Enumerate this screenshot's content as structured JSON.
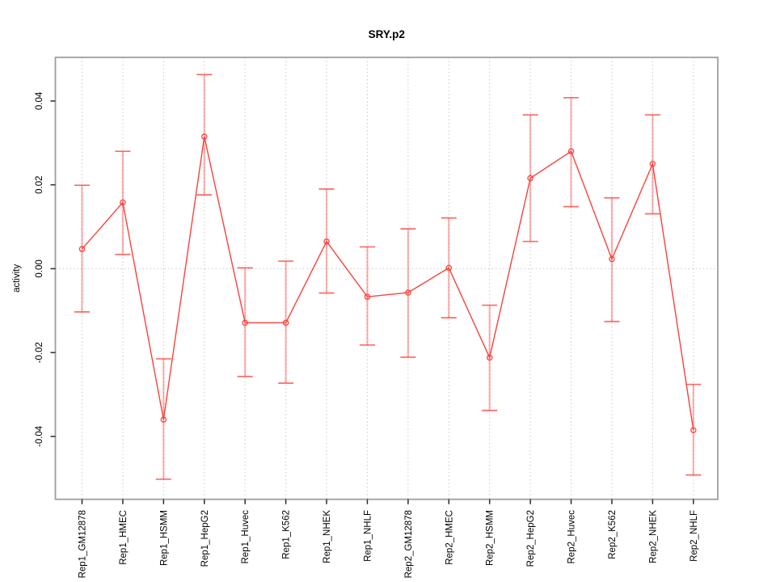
{
  "chart_data": {
    "type": "line",
    "title": "SRY.p2",
    "xlabel": "",
    "ylabel": "activity",
    "legend": "none",
    "grid": "dotted vertical line at each category; dotted horizontal line at y=0",
    "point_style": "open circle with error bars",
    "categories": [
      "Rep1_GM12878",
      "Rep1_HMEC",
      "Rep1_HSMM",
      "Rep1_HepG2",
      "Rep1_Huvec",
      "Rep1_K562",
      "Rep1_NHEK",
      "Rep1_NHLF",
      "Rep2_GM12878",
      "Rep2_HMEC",
      "Rep2_HSMM",
      "Rep2_HepG2",
      "Rep2_Huvec",
      "Rep2_K562",
      "Rep2_NHEK",
      "Rep2_NHLF"
    ],
    "series": [
      {
        "name": "activity",
        "values": [
          0.0047,
          0.0158,
          -0.036,
          0.0315,
          -0.0129,
          -0.0129,
          0.0065,
          -0.0067,
          -0.0057,
          0.0002,
          -0.0212,
          0.0216,
          0.028,
          0.0023,
          0.025,
          -0.0385
        ],
        "error_low": [
          -0.0103,
          0.0034,
          -0.0502,
          0.0176,
          -0.0257,
          -0.0273,
          -0.0058,
          -0.0182,
          -0.0211,
          -0.0117,
          -0.0338,
          0.0065,
          0.0148,
          -0.0126,
          0.0131,
          -0.0492
        ],
        "error_high": [
          0.0199,
          0.028,
          -0.0215,
          0.0463,
          0.0002,
          0.0018,
          0.019,
          0.0052,
          0.0095,
          0.0121,
          -0.0087,
          0.0367,
          0.0408,
          0.0169,
          0.0367,
          -0.0276
        ]
      }
    ],
    "ytick_labels": [
      "0.04",
      "0.02",
      "0.00",
      "-0.02",
      "-0.04"
    ],
    "ylim": [
      -0.055,
      0.0504
    ],
    "colors": {
      "series": "#f8423b",
      "error_bar": "#f8423b",
      "grid": "#c9c9c9",
      "frame": "#9e9e9e",
      "tick": "#2b2b2b",
      "text": "#000000",
      "background": "#ffffff"
    }
  }
}
